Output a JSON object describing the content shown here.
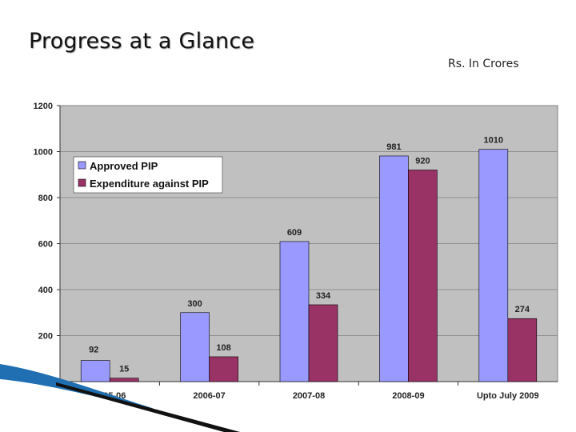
{
  "slide": {
    "title": "Progress at a Glance",
    "units": "Rs. In Crores"
  },
  "chart_data": {
    "type": "bar",
    "categories": [
      "2005-06",
      "2006-07",
      "2007-08",
      "2008-09",
      "Upto July 2009"
    ],
    "series": [
      {
        "name": "Approved PIP",
        "values": [
          92,
          300,
          609,
          981,
          1010
        ],
        "color": "#9999ff"
      },
      {
        "name": "Expenditure against PIP",
        "values": [
          15,
          108,
          334,
          920,
          274
        ],
        "color": "#993366"
      }
    ],
    "ylim": [
      0,
      1200
    ],
    "yticks": [
      0,
      200,
      400,
      600,
      800,
      1000,
      1200
    ],
    "legend_position": "upper-left",
    "plot_background": "#c0c0c0",
    "grid": true
  }
}
